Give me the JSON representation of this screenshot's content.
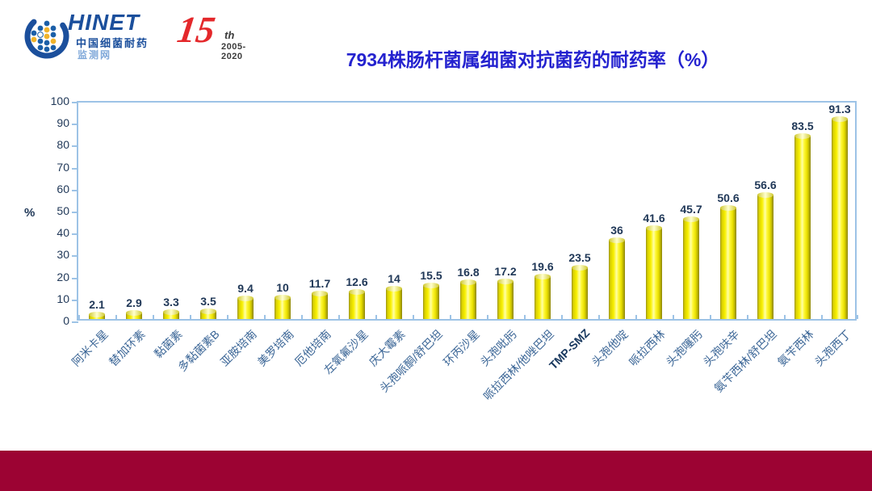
{
  "header": {
    "logo": {
      "brand": "HINET",
      "cn_line1": "中国细菌耐药",
      "cn_line2": "监测网",
      "anniversary_number": "15",
      "anniversary_suffix": "th",
      "anniversary_years": "2005-2020"
    },
    "title": "7934株肠杆菌属细菌对抗菌药的耐药率（%）"
  },
  "chart_data": {
    "type": "bar",
    "title": "7934株肠杆菌属细菌对抗菌药的耐药率（%）",
    "xlabel": "",
    "ylabel": "%",
    "ylim": [
      0,
      100
    ],
    "ytick_step": 10,
    "grid": false,
    "legend": "none",
    "bar_style": "yellow 3d cylinder",
    "categories": [
      "阿米卡星",
      "替加环素",
      "黏菌素",
      "多黏菌素B",
      "亚胺培南",
      "美罗培南",
      "厄他培南",
      "左氧氟沙星",
      "庆大霉素",
      "头孢哌酮/舒巴坦",
      "环丙沙星",
      "头孢吡肟",
      "哌拉西林/他唑巴坦",
      "TMP-SMZ",
      "头孢他啶",
      "哌拉西林",
      "头孢噻肟",
      "头孢呋辛",
      "氨苄西林/舒巴坦",
      "氨苄西林",
      "头孢西丁"
    ],
    "values": [
      2.1,
      2.9,
      3.3,
      3.5,
      9.4,
      10,
      11.7,
      12.6,
      14,
      15.5,
      16.8,
      17.2,
      19.6,
      23.5,
      36,
      41.6,
      45.7,
      50.6,
      56.6,
      83.5,
      91.3
    ],
    "value_labels": [
      "2.1",
      "2.9",
      "3.3",
      "3.5",
      "9.4",
      "10",
      "11.7",
      "12.6",
      "14",
      "15.5",
      "16.8",
      "17.2",
      "19.6",
      "23.5",
      "36",
      "41.6",
      "45.7",
      "50.6",
      "56.6",
      "83.5",
      "91.3"
    ],
    "bold_categories": [
      "TMP-SMZ"
    ]
  },
  "colors": {
    "title_blue": "#2422cf",
    "label_navy": "#1f3757",
    "axis_blue": "#9dc3e6",
    "xlabel_blue": "#3a6596",
    "xlabel_bold_navy": "#17375e",
    "bar_yellow": "#f8f000",
    "band_maroon": "#9c0333",
    "brand_blue": "#1b4f9c",
    "brand_light_blue": "#7fa8d9",
    "brand_red": "#e4282b",
    "brand_gold": "#f0b32c"
  }
}
